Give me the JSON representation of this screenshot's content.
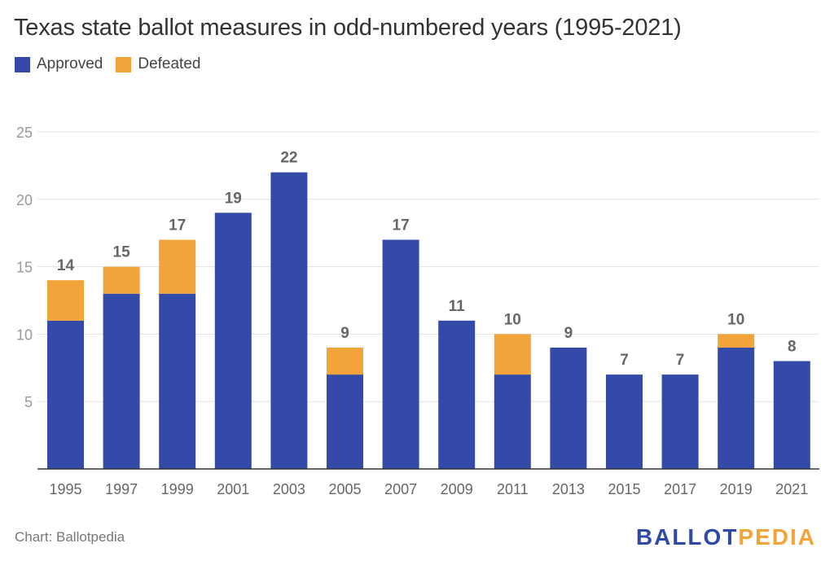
{
  "title": "Texas state ballot measures in odd-numbered years (1995-2021)",
  "source": "Chart: Ballotpedia",
  "brand": {
    "part1": "BALLOT",
    "part2": "PEDIA",
    "color1": "#2f49a7",
    "color2": "#f2a33a"
  },
  "chart_data": {
    "type": "bar",
    "stacked": true,
    "categories": [
      "1995",
      "1997",
      "1999",
      "2001",
      "2003",
      "2005",
      "2007",
      "2009",
      "2011",
      "2013",
      "2015",
      "2017",
      "2019",
      "2021"
    ],
    "series": [
      {
        "name": "Approved",
        "color": "#334aa8",
        "values": [
          11,
          13,
          13,
          19,
          22,
          7,
          17,
          11,
          7,
          9,
          7,
          7,
          9,
          8
        ]
      },
      {
        "name": "Defeated",
        "color": "#f2a33a",
        "values": [
          3,
          2,
          4,
          0,
          0,
          2,
          0,
          0,
          3,
          0,
          0,
          0,
          1,
          0
        ]
      }
    ],
    "totals": [
      14,
      15,
      17,
      19,
      22,
      9,
      17,
      11,
      10,
      9,
      7,
      7,
      10,
      8
    ],
    "ylim": [
      0,
      25
    ],
    "yticks": [
      5,
      10,
      15,
      20,
      25
    ],
    "grid": true,
    "legend_position": "top-left"
  }
}
